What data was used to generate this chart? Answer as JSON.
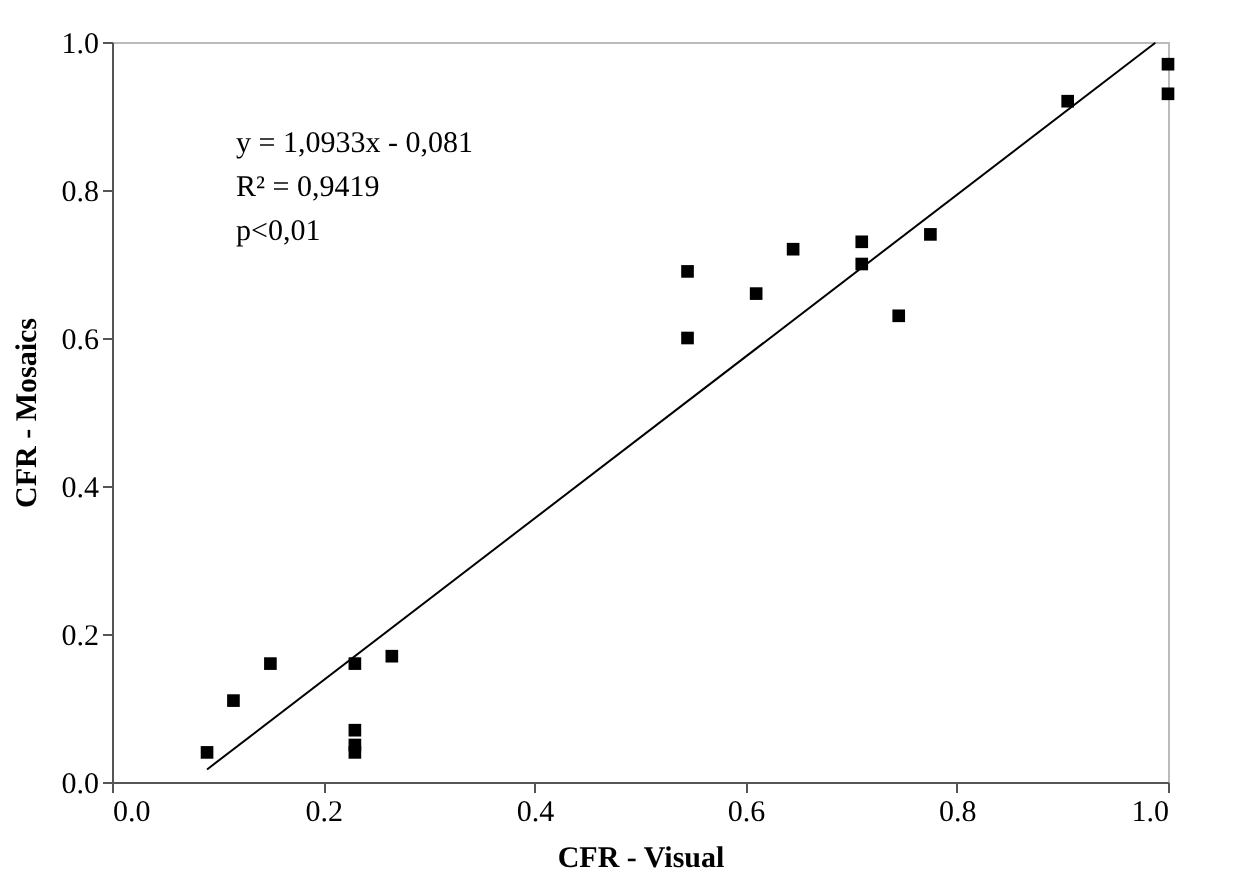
{
  "chart_data": {
    "type": "scatter",
    "xlabel": "CFR - Visual",
    "ylabel": "CFR - Mosaics",
    "grid": false,
    "xlim": [
      0.0,
      1.0
    ],
    "xticks": [
      {
        "value": 0,
        "label": "0.0"
      },
      {
        "value": 0.2,
        "label": "0.2"
      },
      {
        "value": 0.4,
        "label": "0.4"
      },
      {
        "value": 0.6,
        "label": "0.6"
      },
      {
        "value": 0.8,
        "label": "0.8"
      },
      {
        "value": 1,
        "label": "1.0"
      }
    ],
    "ylim": [
      0.0,
      1.0
    ],
    "yticks": [
      {
        "value": 0,
        "label": "0.0"
      },
      {
        "value": 0.2,
        "label": "0.2"
      },
      {
        "value": 0.4,
        "label": "0.4"
      },
      {
        "value": 0.6,
        "label": "0.6"
      },
      {
        "value": 0.8,
        "label": "0.8"
      },
      {
        "value": 1,
        "label": "1.0"
      }
    ],
    "annotations": [
      "y = 1,0933x - 0,081",
      "R² = 0,9419",
      "p<0,01"
    ],
    "series": [
      {
        "marker": "square",
        "color": "#000000",
        "x": [
          0.09,
          0.115,
          0.15,
          0.23,
          0.23,
          0.23,
          0.23,
          0.265,
          0.545,
          0.545,
          0.61,
          0.645,
          0.71,
          0.71,
          0.745,
          0.775,
          0.905,
          1.0,
          1.0
        ],
        "values": [
          0.04,
          0.11,
          0.16,
          0.16,
          0.07,
          0.05,
          0.04,
          0.17,
          0.69,
          0.6,
          0.66,
          0.72,
          0.73,
          0.7,
          0.63,
          0.74,
          0.92,
          0.97,
          0.93
        ]
      },
      {
        "type": "line",
        "color": "#000000",
        "line_style": "solid",
        "x": [
          0.09,
          0.988
        ],
        "values": [
          0.017,
          0.999
        ]
      }
    ]
  }
}
